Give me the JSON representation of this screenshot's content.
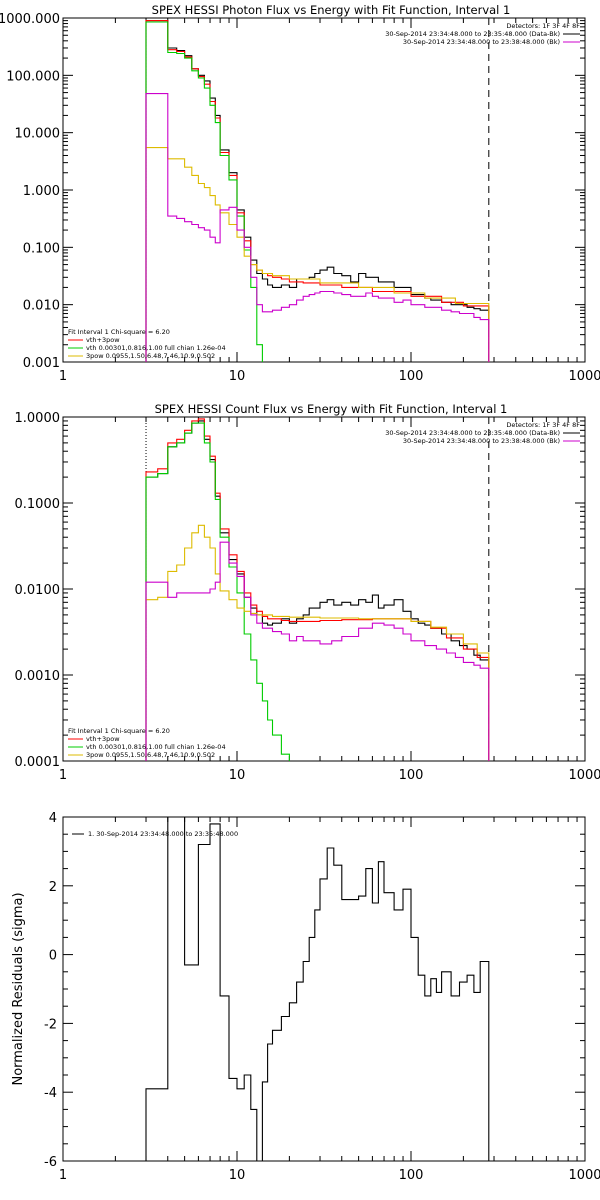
{
  "chart_data": [
    {
      "type": "line",
      "title": "SPEX HESSI Photon Flux vs Energy with Fit Function, Interval 1",
      "xscale": "log",
      "yscale": "log",
      "xlim": [
        1,
        1000
      ],
      "ylim": [
        0.001,
        1000
      ],
      "xticks": [
        "1",
        "10",
        "100",
        "1000"
      ],
      "yticks": [
        "1000.000",
        "100.000",
        "10.000",
        "1.000",
        "0.100",
        "0.010",
        "0.001"
      ],
      "vlines": [
        {
          "x": 3,
          "style": "dotted"
        },
        {
          "x": 280,
          "style": "dashed"
        }
      ],
      "legend_top": {
        "detectors": "Detectors: 1F 3F 4F 8F",
        "entries": [
          {
            "text": "30-Sep-2014 23:34:48.000 to 23:35:48.000 (Data-Bk)",
            "color": "#000000"
          },
          {
            "text": "30-Sep-2014 23:34:48.000 to 23:38:48.000 (Bk)",
            "color": "#cc00cc"
          }
        ]
      },
      "legend_bottom": {
        "header": "Fit Interval 1    Chi-square = 6.20",
        "entries": [
          {
            "text": "vth+3pow",
            "color": "#ff0000"
          },
          {
            "text": "vth 0.00301,0.816,1.00   full chian 1.26e-04",
            "color": "#00cc00"
          },
          {
            "text": "3pow 0.0955,1.50,6.48,7.46,10.9,0.502",
            "color": "#ddbb00"
          }
        ]
      },
      "series": [
        {
          "color": "#000000",
          "x": [
            3,
            3.5,
            4,
            4.5,
            5,
            5.5,
            6,
            6.5,
            7,
            7.5,
            8,
            9,
            10,
            11,
            12,
            13,
            14,
            15,
            16,
            18,
            20,
            22,
            24,
            26,
            28,
            30,
            33,
            36,
            40,
            45,
            50,
            55,
            60,
            65,
            70,
            80,
            90,
            100,
            110,
            120,
            130,
            140,
            150,
            170,
            190,
            210,
            230,
            250,
            280
          ],
          "y": [
            900,
            900,
            300,
            270,
            220,
            130,
            100,
            80,
            40,
            20,
            5,
            2,
            0.45,
            0.15,
            0.06,
            0.035,
            0.028,
            0.022,
            0.02,
            0.022,
            0.02,
            0.028,
            0.028,
            0.03,
            0.035,
            0.04,
            0.045,
            0.035,
            0.032,
            0.025,
            0.035,
            0.03,
            0.03,
            0.025,
            0.025,
            0.02,
            0.02,
            0.015,
            0.015,
            0.013,
            0.012,
            0.012,
            0.011,
            0.01,
            0.01,
            0.009,
            0.0085,
            0.008,
            0.008
          ]
        },
        {
          "color": "#ff0000",
          "x": [
            3,
            3.5,
            4,
            4.5,
            5,
            5.5,
            6,
            6.5,
            7,
            7.5,
            8,
            9,
            10,
            11,
            12,
            13,
            14,
            15,
            16,
            18,
            20,
            24,
            30,
            40,
            60,
            100,
            150,
            200,
            280
          ],
          "y": [
            900,
            900,
            280,
            260,
            210,
            130,
            95,
            70,
            35,
            18,
            4.5,
            1.8,
            0.4,
            0.13,
            0.05,
            0.04,
            0.035,
            0.032,
            0.03,
            0.028,
            0.025,
            0.024,
            0.022,
            0.02,
            0.017,
            0.014,
            0.011,
            0.0095,
            0.0085
          ]
        },
        {
          "color": "#00cc00",
          "x": [
            3,
            3.5,
            4,
            4.5,
            5,
            5.5,
            6,
            6.5,
            7,
            7.5,
            8,
            9,
            10,
            11,
            12,
            13,
            14
          ],
          "y": [
            850,
            850,
            250,
            240,
            200,
            120,
            90,
            60,
            30,
            15,
            4,
            1.5,
            0.35,
            0.09,
            0.02,
            0.002,
            0.001
          ]
        },
        {
          "color": "#ddbb00",
          "x": [
            3,
            3.5,
            4,
            4.5,
            5,
            5.5,
            6,
            6.5,
            7,
            7.5,
            8,
            9,
            10,
            11,
            12,
            13,
            14,
            16,
            20,
            30,
            50,
            80,
            120,
            180,
            280
          ],
          "y": [
            5.5,
            5.5,
            3.5,
            3.5,
            2.5,
            1.8,
            1.3,
            1.1,
            0.8,
            0.55,
            0.4,
            0.25,
            0.15,
            0.07,
            0.05,
            0.04,
            0.035,
            0.032,
            0.028,
            0.024,
            0.02,
            0.016,
            0.013,
            0.0105,
            0.0085
          ]
        },
        {
          "color": "#cc00cc",
          "x": [
            3,
            3.5,
            4,
            4.5,
            5,
            5.5,
            6,
            6.5,
            7,
            7.5,
            8,
            9,
            10,
            11,
            12,
            13,
            14,
            16,
            18,
            20,
            22,
            24,
            26,
            28,
            30,
            33,
            36,
            40,
            45,
            50,
            55,
            60,
            65,
            70,
            80,
            90,
            100,
            110,
            120,
            130,
            150,
            170,
            190,
            210,
            230,
            250,
            280
          ],
          "y": [
            48,
            48,
            0.35,
            0.32,
            0.28,
            0.25,
            0.22,
            0.2,
            0.15,
            0.12,
            0.45,
            0.5,
            0.2,
            0.1,
            0.03,
            0.01,
            0.0075,
            0.008,
            0.009,
            0.01,
            0.012,
            0.014,
            0.015,
            0.016,
            0.017,
            0.017,
            0.016,
            0.015,
            0.014,
            0.014,
            0.016,
            0.014,
            0.013,
            0.013,
            0.011,
            0.012,
            0.01,
            0.01,
            0.009,
            0.009,
            0.008,
            0.0075,
            0.007,
            0.007,
            0.006,
            0.0055,
            0.004
          ]
        }
      ]
    },
    {
      "type": "line",
      "title": "SPEX HESSI Count Flux vs Energy with Fit Function, Interval 1",
      "xscale": "log",
      "yscale": "log",
      "xlim": [
        1,
        1000
      ],
      "ylim": [
        0.0001,
        1
      ],
      "xticks": [
        "1",
        "10",
        "100",
        "1000"
      ],
      "yticks": [
        "1.0000",
        "0.1000",
        "0.0100",
        "0.0010",
        "0.0001"
      ],
      "vlines": [
        {
          "x": 3,
          "style": "dotted"
        },
        {
          "x": 280,
          "style": "dashed"
        }
      ],
      "legend_top": {
        "detectors": "Detectors: 1F 3F 4F 8F",
        "entries": [
          {
            "text": "30-Sep-2014 23:34:48.000 to 23:35:48.000 (Data-Bk)",
            "color": "#000000"
          },
          {
            "text": "30-Sep-2014 23:34:48.000 to 23:38:48.000 (Bk)",
            "color": "#cc00cc"
          }
        ]
      },
      "legend_bottom": {
        "header": "Fit Interval 1    Chi-square = 6.20",
        "entries": [
          {
            "text": "vth+3pow",
            "color": "#ff0000"
          },
          {
            "text": "vth 0.00301,0.816,1.00   full chian 1.26e-04",
            "color": "#00cc00"
          },
          {
            "text": "3pow 0.0955,1.50,6.48,7.46,10.9,0.502",
            "color": "#ddbb00"
          }
        ]
      },
      "series": [
        {
          "color": "#000000",
          "x": [
            3,
            3.5,
            4,
            4.5,
            5,
            5.5,
            6,
            6.5,
            7,
            7.5,
            8,
            9,
            10,
            11,
            12,
            13,
            14,
            15,
            16,
            18,
            20,
            22,
            24,
            26,
            28,
            30,
            33,
            36,
            40,
            45,
            50,
            55,
            60,
            65,
            70,
            80,
            90,
            100,
            110,
            120,
            130,
            150,
            170,
            190,
            210,
            230,
            250,
            280
          ],
          "y": [
            0.2,
            0.22,
            0.45,
            0.5,
            0.65,
            0.85,
            0.9,
            0.55,
            0.32,
            0.12,
            0.045,
            0.022,
            0.015,
            0.008,
            0.006,
            0.005,
            0.004,
            0.0038,
            0.004,
            0.0045,
            0.004,
            0.0045,
            0.005,
            0.006,
            0.006,
            0.007,
            0.0075,
            0.0065,
            0.007,
            0.0065,
            0.0075,
            0.007,
            0.0085,
            0.006,
            0.0065,
            0.0075,
            0.0055,
            0.0045,
            0.004,
            0.0038,
            0.0035,
            0.003,
            0.0025,
            0.0022,
            0.002,
            0.0017,
            0.0015,
            0.0014
          ]
        },
        {
          "color": "#ff0000",
          "x": [
            3,
            3.5,
            4,
            4.5,
            5,
            5.5,
            6,
            6.5,
            7,
            7.5,
            8,
            9,
            10,
            11,
            12,
            13,
            14,
            15,
            16,
            18,
            20,
            25,
            30,
            40,
            60,
            80,
            100,
            130,
            160,
            200,
            240,
            280
          ],
          "y": [
            0.23,
            0.25,
            0.5,
            0.55,
            0.7,
            0.9,
            0.95,
            0.6,
            0.35,
            0.13,
            0.05,
            0.025,
            0.016,
            0.009,
            0.0065,
            0.0055,
            0.0048,
            0.0045,
            0.0045,
            0.0043,
            0.0042,
            0.0042,
            0.0043,
            0.0044,
            0.0045,
            0.0045,
            0.0042,
            0.0035,
            0.0027,
            0.002,
            0.0016,
            0.0013
          ]
        },
        {
          "color": "#00cc00",
          "x": [
            3,
            3.5,
            4,
            4.5,
            5,
            5.5,
            6,
            6.5,
            7,
            7.5,
            8,
            9,
            10,
            11,
            12,
            13,
            14,
            15,
            16,
            18,
            20
          ],
          "y": [
            0.2,
            0.22,
            0.45,
            0.5,
            0.65,
            0.85,
            0.85,
            0.5,
            0.3,
            0.11,
            0.04,
            0.018,
            0.009,
            0.003,
            0.0015,
            0.0008,
            0.0005,
            0.0003,
            0.0002,
            0.00012,
            0.0001
          ]
        },
        {
          "color": "#ddbb00",
          "x": [
            3,
            3.5,
            4,
            4.5,
            5,
            5.5,
            6,
            6.5,
            7,
            7.5,
            8,
            9,
            10,
            11,
            12,
            13,
            14,
            16,
            20,
            30,
            50,
            70,
            100,
            130,
            160,
            200,
            240,
            280
          ],
          "y": [
            0.0075,
            0.008,
            0.016,
            0.019,
            0.03,
            0.045,
            0.055,
            0.04,
            0.03,
            0.015,
            0.0095,
            0.0075,
            0.006,
            0.0055,
            0.0052,
            0.005,
            0.005,
            0.0048,
            0.0047,
            0.0046,
            0.0045,
            0.0045,
            0.0042,
            0.0036,
            0.003,
            0.0023,
            0.0018,
            0.0015
          ]
        },
        {
          "color": "#cc00cc",
          "x": [
            3,
            3.5,
            4,
            4.5,
            5,
            6,
            7,
            7.5,
            8,
            9,
            10,
            11,
            12,
            13,
            14,
            16,
            18,
            20,
            22,
            24,
            26,
            30,
            35,
            40,
            50,
            60,
            70,
            80,
            90,
            100,
            120,
            140,
            160,
            180,
            200,
            230,
            250,
            280
          ],
          "y": [
            0.012,
            0.012,
            0.008,
            0.009,
            0.009,
            0.009,
            0.01,
            0.012,
            0.035,
            0.02,
            0.014,
            0.008,
            0.005,
            0.004,
            0.0035,
            0.0032,
            0.003,
            0.0025,
            0.0028,
            0.0025,
            0.0025,
            0.0023,
            0.0025,
            0.0028,
            0.0035,
            0.004,
            0.0038,
            0.0035,
            0.003,
            0.0025,
            0.0022,
            0.002,
            0.0018,
            0.0016,
            0.0014,
            0.0013,
            0.0012,
            0.0009
          ]
        }
      ]
    },
    {
      "type": "line",
      "title": "",
      "xscale": "log",
      "yscale": "linear",
      "xlim": [
        1,
        1000
      ],
      "ylim": [
        -6,
        4
      ],
      "xticks": [
        "1",
        "10",
        "100",
        "1000"
      ],
      "yticks": [
        "4",
        "2",
        "0",
        "-2",
        "-4",
        "-6"
      ],
      "ylabel": "Normalized Residuals (sigma)",
      "legend": "1. 30-Sep-2014 23:34:48.000 to 23:35:48.000",
      "series": [
        {
          "color": "#000000",
          "x": [
            3,
            3.5,
            4,
            4.5,
            5,
            5.5,
            6,
            6.5,
            7,
            7.5,
            8,
            9,
            10,
            11,
            12,
            13,
            14,
            15,
            16,
            18,
            20,
            22,
            24,
            26,
            28,
            30,
            33,
            36,
            40,
            45,
            50,
            55,
            60,
            65,
            70,
            80,
            90,
            100,
            110,
            120,
            130,
            140,
            150,
            170,
            190,
            210,
            230,
            250,
            280
          ],
          "y": [
            -3.9,
            -3.9,
            4,
            4,
            -0.3,
            -0.3,
            3.2,
            3.2,
            3.8,
            3.8,
            -1.2,
            -3.6,
            -3.9,
            -3.5,
            -4.5,
            -6,
            -3.7,
            -2.6,
            -2.2,
            -1.8,
            -1.4,
            -0.8,
            -0.2,
            0.5,
            1.3,
            2.2,
            3.1,
            2.6,
            1.6,
            1.6,
            1.7,
            2.5,
            1.5,
            2.7,
            1.8,
            1.3,
            1.9,
            0.5,
            -0.6,
            -1.2,
            -0.7,
            -1.1,
            -0.5,
            -1.2,
            -0.8,
            -0.6,
            -1.1,
            -0.2,
            -0.2
          ]
        }
      ]
    }
  ]
}
